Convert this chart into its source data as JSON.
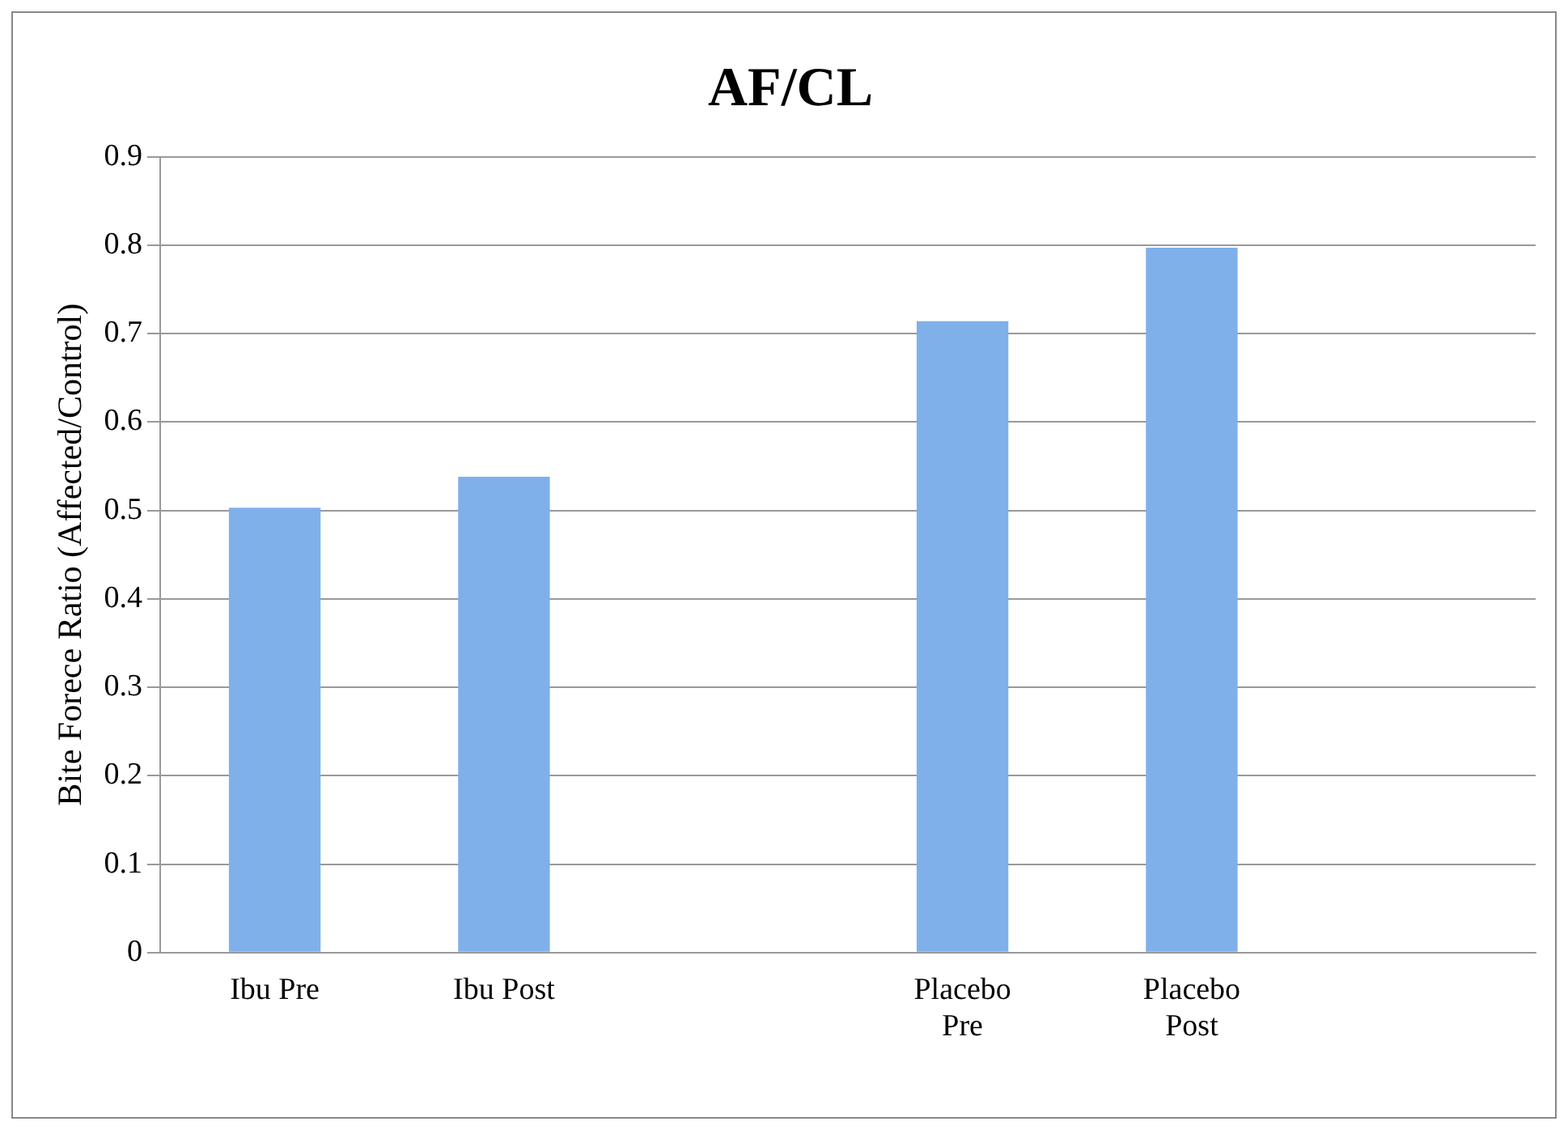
{
  "chart_data": {
    "type": "bar",
    "title": "AF/CL",
    "ylabel": "Bite Forece Ratio (Affected/Control)",
    "categories": [
      "Ibu Pre",
      "Ibu Post",
      null,
      "Placebo Pre",
      "Placebo Post",
      null
    ],
    "values": [
      0.503,
      0.538,
      null,
      0.714,
      0.797,
      null
    ],
    "color": "#7fb0ea",
    "ylim": [
      0,
      0.9
    ],
    "yticks": [
      0,
      0.1,
      0.2,
      0.3,
      0.4,
      0.5,
      0.6,
      0.7,
      0.8,
      0.9
    ],
    "grid": "y",
    "legend": false
  }
}
